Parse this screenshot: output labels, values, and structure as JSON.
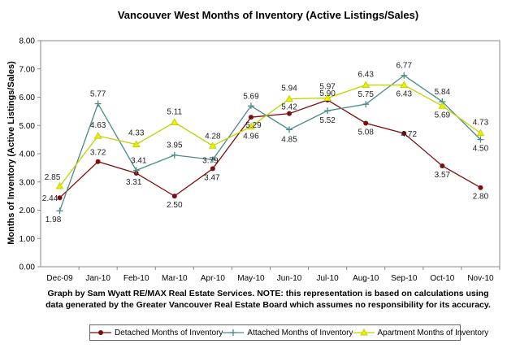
{
  "chart_data": {
    "type": "line",
    "title": "Vancouver West  Months of Inventory (Active Listings/Sales)",
    "xlabel": "",
    "ylabel": "Months of Inventory (Active Listings/Sales)",
    "ylim": [
      0,
      8
    ],
    "yticks": [
      "0.00",
      "1.00",
      "2.00",
      "3.00",
      "4.00",
      "5.00",
      "6.00",
      "7.00",
      "8.00"
    ],
    "categories": [
      "Dec-09",
      "Jan-10",
      "Feb-10",
      "Mar-10",
      "Apr-10",
      "May-10",
      "Jun-10",
      "Jul-10",
      "Aug-10",
      "Sep-10",
      "Oct-10",
      "Nov-10"
    ],
    "series": [
      {
        "name": "Detached Months of Inventory",
        "color": "#7B0F0F",
        "marker": "circle",
        "values": [
          2.44,
          3.72,
          3.31,
          2.5,
          3.47,
          5.29,
          5.42,
          5.9,
          5.08,
          4.72,
          3.57,
          2.8
        ],
        "labels": [
          "2.44",
          "3.72",
          "3.31",
          "2.50",
          "3.47",
          "5.29",
          "5.42",
          "5.90",
          "5.08",
          "4.72",
          "3.57",
          "2.80"
        ]
      },
      {
        "name": "Attached Months of Inventory",
        "color": "#4E8A8A",
        "marker": "plus",
        "values": [
          1.98,
          5.77,
          3.41,
          3.95,
          3.79,
          5.69,
          4.85,
          5.52,
          5.75,
          6.77,
          5.84,
          4.5
        ],
        "labels": [
          "1.98",
          "5.77",
          "3.41",
          "3.95",
          "3.79",
          "5.69",
          "4.85",
          "5.52",
          "5.75",
          "6.77",
          "5.84",
          "4.50"
        ]
      },
      {
        "name": "Apartment Months of Inventory",
        "color": "#BFD400",
        "marker": "triangle",
        "values": [
          2.85,
          4.63,
          4.33,
          5.11,
          4.28,
          4.96,
          5.94,
          5.97,
          6.43,
          6.43,
          5.69,
          4.73
        ],
        "labels": [
          "2.85",
          "4.63",
          "4.33",
          "5.11",
          "4.28",
          "4.96",
          "5.94",
          "5.97",
          "6.43",
          "6.43",
          "5.69",
          "4.73"
        ]
      }
    ]
  },
  "note": {
    "line1": "Graph by Sam Wyatt RE/MAX Real Estate Services.   NOTE: this representation is based on calculations using",
    "line2": "data generated by the Greater Vancouver Real Estate Board which assumes no responsibility for its accuracy."
  }
}
